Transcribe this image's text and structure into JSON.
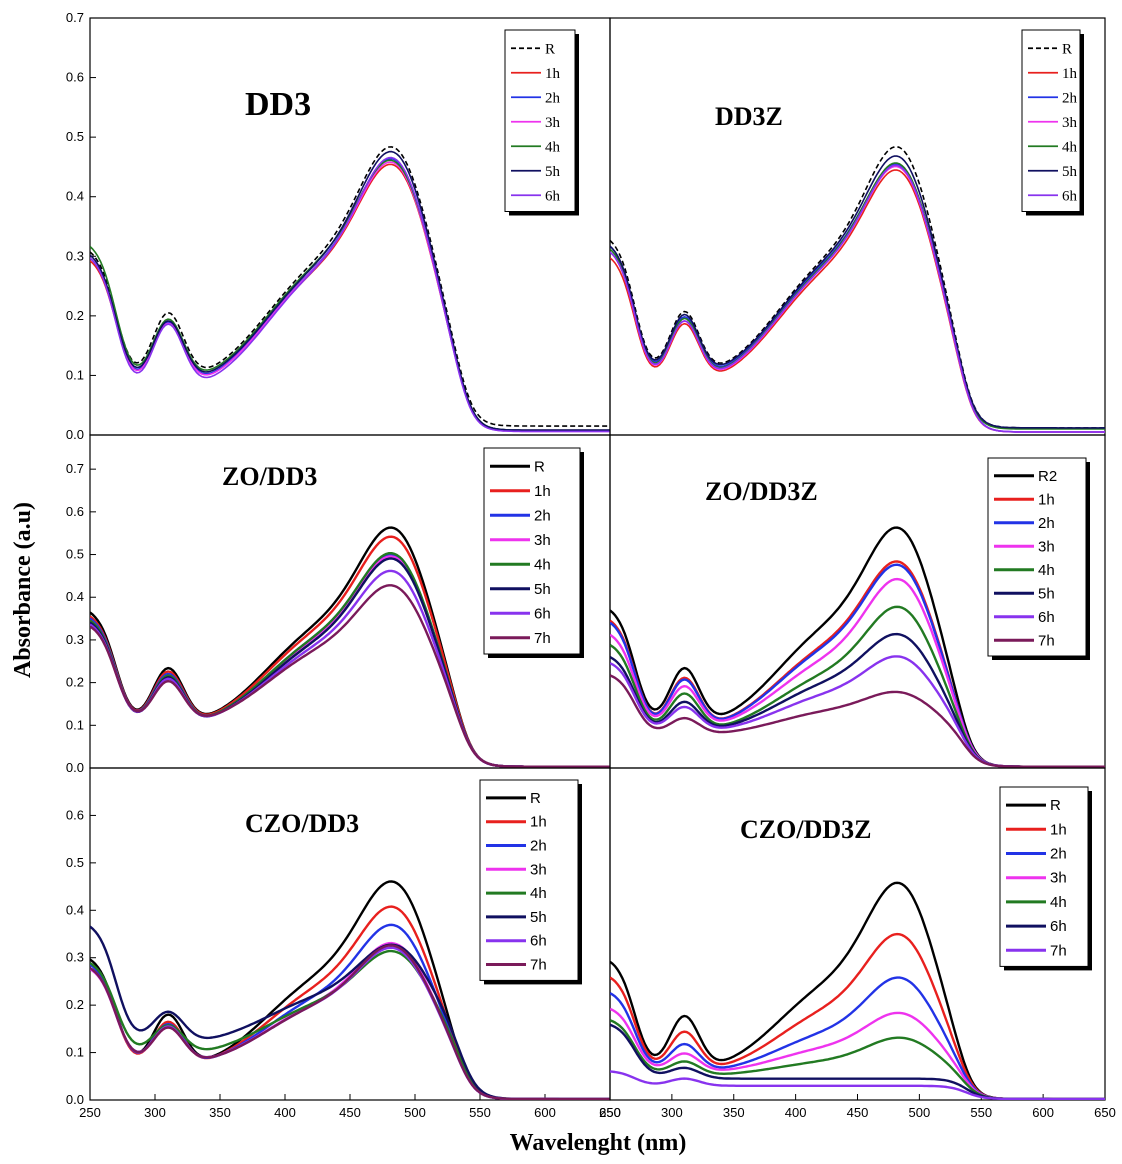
{
  "y_axis_label": "Absorbance (a.u)",
  "x_axis_label": "Wavelenght (nm)",
  "chart_data": [
    {
      "type": "line",
      "title": "DD3",
      "xlim": [
        250,
        650
      ],
      "ylim": [
        0,
        0.7
      ],
      "yticks": [
        "0.0",
        "0.1",
        "0.2",
        "0.3",
        "0.4",
        "0.5",
        "0.6",
        "0.7"
      ],
      "xticks": [],
      "legend": "top-right",
      "series": [
        {
          "name": "R",
          "color": "#000000",
          "dashed": true,
          "a": 0.32,
          "b": 0.238,
          "c": 0.082,
          "d": 0.243,
          "p": 0.498,
          "t": 0.015
        },
        {
          "name": "1h",
          "color": "#e8201e",
          "a": 0.305,
          "b": 0.222,
          "c": 0.072,
          "d": 0.232,
          "p": 0.468,
          "t": 0.008
        },
        {
          "name": "2h",
          "color": "#2233e6",
          "a": 0.31,
          "b": 0.22,
          "c": 0.072,
          "d": 0.235,
          "p": 0.478,
          "t": 0.008
        },
        {
          "name": "3h",
          "color": "#ee33ee",
          "a": 0.31,
          "b": 0.218,
          "c": 0.07,
          "d": 0.235,
          "p": 0.472,
          "t": 0.006
        },
        {
          "name": "4h",
          "color": "#227a22",
          "a": 0.33,
          "b": 0.225,
          "c": 0.078,
          "d": 0.24,
          "p": 0.475,
          "t": 0.008
        },
        {
          "name": "5h",
          "color": "#101060",
          "a": 0.315,
          "b": 0.222,
          "c": 0.075,
          "d": 0.238,
          "p": 0.49,
          "t": 0.008
        },
        {
          "name": "6h",
          "color": "#8833ee",
          "a": 0.31,
          "b": 0.218,
          "c": 0.065,
          "d": 0.235,
          "p": 0.48,
          "t": 0.006
        }
      ]
    },
    {
      "type": "line",
      "title": "DD3Z",
      "xlim": [
        250,
        650
      ],
      "ylim": [
        0,
        0.7
      ],
      "yticks": [],
      "xticks": [],
      "legend": "top-right",
      "series": [
        {
          "name": "R",
          "color": "#000000",
          "dashed": true,
          "a": 0.34,
          "b": 0.238,
          "c": 0.09,
          "d": 0.245,
          "p": 0.498,
          "t": 0.012
        },
        {
          "name": "1h",
          "color": "#e8201e",
          "a": 0.31,
          "b": 0.215,
          "c": 0.078,
          "d": 0.232,
          "p": 0.458,
          "t": 0.005
        },
        {
          "name": "2h",
          "color": "#2233e6",
          "a": 0.33,
          "b": 0.228,
          "c": 0.085,
          "d": 0.24,
          "p": 0.468,
          "t": 0.005
        },
        {
          "name": "3h",
          "color": "#ee33ee",
          "a": 0.32,
          "b": 0.22,
          "c": 0.08,
          "d": 0.236,
          "p": 0.464,
          "t": 0.005
        },
        {
          "name": "4h",
          "color": "#227a22",
          "a": 0.325,
          "b": 0.225,
          "c": 0.083,
          "d": 0.238,
          "p": 0.47,
          "t": 0.01
        },
        {
          "name": "5h",
          "color": "#101060",
          "a": 0.33,
          "b": 0.232,
          "c": 0.088,
          "d": 0.242,
          "p": 0.482,
          "t": 0.012
        },
        {
          "name": "6h",
          "color": "#8833ee",
          "a": 0.32,
          "b": 0.22,
          "c": 0.082,
          "d": 0.236,
          "p": 0.466,
          "t": 0.005
        }
      ]
    },
    {
      "type": "line",
      "title": "ZO/DD3",
      "xlim": [
        250,
        650
      ],
      "ylim": [
        0,
        0.78
      ],
      "yticks": [
        "0.0",
        "0.1",
        "0.2",
        "0.3",
        "0.4",
        "0.5",
        "0.6",
        "0.7"
      ],
      "xticks": [],
      "legend": "top-right",
      "series": [
        {
          "name": "R",
          "color": "#000000",
          "a": 0.38,
          "b": 0.272,
          "c": 0.09,
          "d": 0.28,
          "p": 0.58,
          "t": 0.003
        },
        {
          "name": "1h",
          "color": "#e8201e",
          "a": 0.37,
          "b": 0.262,
          "c": 0.09,
          "d": 0.27,
          "p": 0.558,
          "t": 0.003
        },
        {
          "name": "2h",
          "color": "#2233e6",
          "a": 0.365,
          "b": 0.255,
          "c": 0.09,
          "d": 0.255,
          "p": 0.515,
          "t": 0.003
        },
        {
          "name": "3h",
          "color": "#ee33ee",
          "a": 0.36,
          "b": 0.25,
          "c": 0.09,
          "d": 0.25,
          "p": 0.51,
          "t": 0.003
        },
        {
          "name": "4h",
          "color": "#227a22",
          "a": 0.36,
          "b": 0.25,
          "c": 0.09,
          "d": 0.255,
          "p": 0.518,
          "t": 0.003
        },
        {
          "name": "5h",
          "color": "#101060",
          "a": 0.355,
          "b": 0.245,
          "c": 0.09,
          "d": 0.245,
          "p": 0.505,
          "t": 0.003
        },
        {
          "name": "6h",
          "color": "#8833ee",
          "a": 0.35,
          "b": 0.24,
          "c": 0.092,
          "d": 0.235,
          "p": 0.475,
          "t": 0.003
        },
        {
          "name": "7h",
          "color": "#7a1a5a",
          "a": 0.345,
          "b": 0.232,
          "c": 0.095,
          "d": 0.225,
          "p": 0.44,
          "t": 0.003
        }
      ]
    },
    {
      "type": "line",
      "title": "ZO/DD3Z",
      "xlim": [
        250,
        650
      ],
      "ylim": [
        0,
        0.78
      ],
      "yticks": [],
      "xticks": [],
      "legend": "top-right",
      "series": [
        {
          "name": "R2",
          "color": "#000000",
          "a": 0.385,
          "b": 0.272,
          "c": 0.09,
          "d": 0.28,
          "p": 0.58,
          "t": 0.003
        },
        {
          "name": "1h",
          "color": "#e8201e",
          "a": 0.36,
          "b": 0.245,
          "c": 0.085,
          "d": 0.24,
          "p": 0.498,
          "t": 0.003
        },
        {
          "name": "2h",
          "color": "#2233e6",
          "a": 0.355,
          "b": 0.24,
          "c": 0.085,
          "d": 0.235,
          "p": 0.49,
          "t": 0.003
        },
        {
          "name": "3h",
          "color": "#ee33ee",
          "a": 0.325,
          "b": 0.22,
          "c": 0.085,
          "d": 0.21,
          "p": 0.455,
          "t": 0.003
        },
        {
          "name": "4h",
          "color": "#227a22",
          "a": 0.3,
          "b": 0.2,
          "c": 0.08,
          "d": 0.18,
          "p": 0.388,
          "t": 0.003
        },
        {
          "name": "5h",
          "color": "#101060",
          "a": 0.27,
          "b": 0.175,
          "c": 0.08,
          "d": 0.16,
          "p": 0.322,
          "t": 0.003
        },
        {
          "name": "6h",
          "color": "#8833ee",
          "a": 0.255,
          "b": 0.16,
          "c": 0.08,
          "d": 0.135,
          "p": 0.268,
          "t": 0.003
        },
        {
          "name": "7h",
          "color": "#7a1a5a",
          "a": 0.225,
          "b": 0.128,
          "c": 0.075,
          "d": 0.1,
          "p": 0.182,
          "t": 0.003
        }
      ]
    },
    {
      "type": "line",
      "title": "CZO/DD3",
      "xlim": [
        250,
        650
      ],
      "ylim": [
        0,
        0.7
      ],
      "yticks": [
        "0.0",
        "0.1",
        "0.2",
        "0.3",
        "0.4",
        "0.5",
        "0.6"
      ],
      "xticks": [
        "250",
        "300",
        "350",
        "400",
        "450",
        "500",
        "550",
        "600",
        "650"
      ],
      "legend": "top-right",
      "series": [
        {
          "name": "R",
          "color": "#000000",
          "a": 0.31,
          "b": 0.212,
          "c": 0.06,
          "d": 0.222,
          "p": 0.475,
          "t": 0.002
        },
        {
          "name": "1h",
          "color": "#e8201e",
          "a": 0.3,
          "b": 0.192,
          "c": 0.062,
          "d": 0.2,
          "p": 0.42,
          "t": 0.002
        },
        {
          "name": "2h",
          "color": "#2233e6",
          "a": 0.298,
          "b": 0.185,
          "c": 0.066,
          "d": 0.18,
          "p": 0.38,
          "t": 0.002
        },
        {
          "name": "3h",
          "color": "#ee33ee",
          "a": 0.288,
          "b": 0.175,
          "c": 0.07,
          "d": 0.165,
          "p": 0.34,
          "t": 0.002
        },
        {
          "name": "4h",
          "color": "#227a22",
          "a": 0.3,
          "b": 0.175,
          "c": 0.09,
          "d": 0.16,
          "p": 0.322,
          "t": 0.002
        },
        {
          "name": "5h",
          "color": "#101060",
          "a": 0.38,
          "b": 0.205,
          "c": 0.115,
          "d": 0.165,
          "p": 0.335,
          "t": 0.002
        },
        {
          "name": "6h",
          "color": "#8833ee",
          "a": 0.29,
          "b": 0.178,
          "c": 0.07,
          "d": 0.163,
          "p": 0.33,
          "t": 0.002
        },
        {
          "name": "7h",
          "color": "#7a1a5a",
          "a": 0.29,
          "b": 0.175,
          "c": 0.07,
          "d": 0.163,
          "p": 0.335,
          "t": 0.002
        }
      ]
    },
    {
      "type": "line",
      "title": "CZO/DD3Z",
      "xlim": [
        250,
        650
      ],
      "ylim": [
        0,
        0.7
      ],
      "yticks": [],
      "xticks": [
        "250",
        "300",
        "350",
        "400",
        "450",
        "500",
        "550",
        "600",
        "650"
      ],
      "legend": "top-right",
      "series": [
        {
          "name": "R",
          "color": "#000000",
          "a": 0.305,
          "b": 0.21,
          "c": 0.055,
          "d": 0.21,
          "p": 0.472,
          "t": 0.002
        },
        {
          "name": "1h",
          "color": "#e8201e",
          "a": 0.27,
          "b": 0.168,
          "c": 0.055,
          "d": 0.16,
          "p": 0.36,
          "t": 0.002
        },
        {
          "name": "2h",
          "color": "#2233e6",
          "a": 0.235,
          "b": 0.135,
          "c": 0.055,
          "d": 0.115,
          "p": 0.265,
          "t": 0.002
        },
        {
          "name": "3h",
          "color": "#ee33ee",
          "a": 0.2,
          "b": 0.11,
          "c": 0.055,
          "d": 0.085,
          "p": 0.188,
          "t": 0.002
        },
        {
          "name": "4h",
          "color": "#227a22",
          "a": 0.175,
          "b": 0.09,
          "c": 0.05,
          "d": 0.06,
          "p": 0.134,
          "t": 0.002
        },
        {
          "name": "6h",
          "color": "#101060",
          "a": 0.165,
          "b": 0.075,
          "c": 0.045,
          "d": 0.02,
          "p": 0.04,
          "t": 0.002
        },
        {
          "name": "7h",
          "color": "#8833ee",
          "a": 0.062,
          "b": 0.05,
          "c": 0.03,
          "d": 0.015,
          "p": 0.008,
          "t": 0.002
        }
      ]
    }
  ]
}
